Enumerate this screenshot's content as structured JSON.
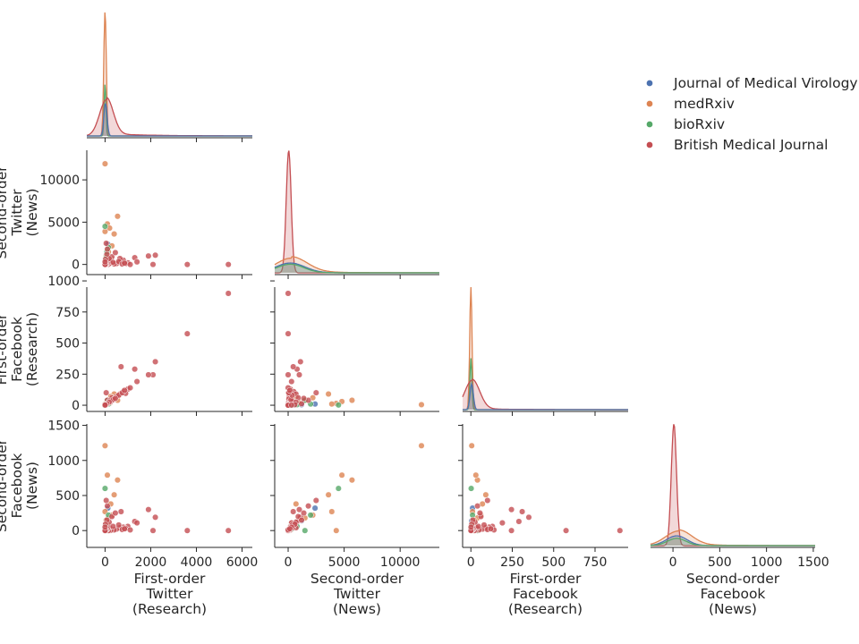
{
  "chart_data": {
    "type": "scatter",
    "subtype": "pairplot",
    "title": "",
    "hue_order": [
      "Journal of Medical Virology",
      "medRxiv",
      "bioRxiv",
      "British Medical Journal"
    ],
    "colors": {
      "Journal of Medical Virology": "#4c72b0",
      "medRxiv": "#dd8452",
      "bioRxiv": "#55a868",
      "British Medical Journal": "#c44e52"
    },
    "legend": {
      "placement": "top-right",
      "entries": [
        "Journal of Medical Virology",
        "medRxiv",
        "bioRxiv",
        "British Medical Journal"
      ]
    },
    "variables": [
      {
        "key": "fo_tw",
        "label_lines": [
          "First-order",
          "Twitter",
          "(Research)"
        ],
        "ticks": [
          0,
          2000,
          4000,
          6000
        ],
        "lim": [
          -800,
          6450
        ]
      },
      {
        "key": "so_tw",
        "label_lines": [
          "Second-order",
          "Twitter",
          "(News)"
        ],
        "ticks": [
          0,
          5000,
          10000
        ],
        "lim": [
          -1200,
          13500
        ]
      },
      {
        "key": "fo_fb",
        "label_lines": [
          "First-order",
          "Facebook",
          "(Research)"
        ],
        "ticks": [
          0,
          250,
          500,
          750,
          1000
        ],
        "lim": [
          -50,
          950
        ]
      },
      {
        "key": "so_fb",
        "label_lines": [
          "Second-order",
          "Facebook",
          "(News)"
        ],
        "ticks": [
          0,
          500,
          1000,
          1500
        ],
        "lim": [
          -240,
          1520
        ]
      }
    ],
    "grid": false,
    "kde": [
      {
        "var": "fo_tw",
        "peaks": [
          {
            "series": "medRxiv",
            "center": 0,
            "height": 1.0,
            "bw": 55,
            "tail": 0.0
          },
          {
            "series": "bioRxiv",
            "center": 0,
            "height": 0.42,
            "bw": 40,
            "tail": 0.0
          },
          {
            "series": "British Medical Journal",
            "center": 60,
            "height": 0.29,
            "bw": 300,
            "tail": 0.018
          },
          {
            "series": "Journal of Medical Virology",
            "center": 20,
            "height": 0.26,
            "bw": 70,
            "tail": 0.0
          }
        ]
      },
      {
        "var": "so_tw",
        "peaks": [
          {
            "series": "British Medical Journal",
            "center": 50,
            "height": 1.0,
            "bw": 220,
            "tail": 0.0
          },
          {
            "series": "medRxiv",
            "center": 300,
            "height": 0.12,
            "bw": 1400,
            "tail": 0.012
          },
          {
            "series": "Journal of Medical Virology",
            "center": 200,
            "height": 0.08,
            "bw": 1300,
            "tail": 0.0
          },
          {
            "series": "bioRxiv",
            "center": 200,
            "height": 0.07,
            "bw": 1200,
            "tail": 0.0
          }
        ]
      },
      {
        "var": "fo_fb",
        "peaks": [
          {
            "series": "medRxiv",
            "center": 0,
            "height": 1.0,
            "bw": 7,
            "tail": 0.0
          },
          {
            "series": "bioRxiv",
            "center": 0,
            "height": 0.42,
            "bw": 6,
            "tail": 0.0
          },
          {
            "series": "British Medical Journal",
            "center": 8,
            "height": 0.24,
            "bw": 45,
            "tail": 0.008
          },
          {
            "series": "Journal of Medical Virology",
            "center": 5,
            "height": 0.21,
            "bw": 10,
            "tail": 0.0
          }
        ]
      },
      {
        "var": "so_fb",
        "peaks": [
          {
            "series": "British Medical Journal",
            "center": 10,
            "height": 1.0,
            "bw": 28,
            "tail": 0.0
          },
          {
            "series": "medRxiv",
            "center": 60,
            "height": 0.12,
            "bw": 140,
            "tail": 0.01
          },
          {
            "series": "Journal of Medical Virology",
            "center": 40,
            "height": 0.08,
            "bw": 110,
            "tail": 0.0
          },
          {
            "series": "bioRxiv",
            "center": 40,
            "height": 0.06,
            "bw": 100,
            "tail": 0.0
          }
        ]
      }
    ],
    "points": [
      {
        "series": "Journal of Medical Virology",
        "fo_tw": 120,
        "so_tw": 2400,
        "fo_fb": 10,
        "so_fb": 320
      },
      {
        "series": "Journal of Medical Virology",
        "fo_tw": 60,
        "so_tw": 1200,
        "fo_fb": 5,
        "so_fb": 140
      },
      {
        "series": "Journal of Medical Virology",
        "fo_tw": 30,
        "so_tw": 600,
        "fo_fb": 3,
        "so_fb": 80
      },
      {
        "series": "Journal of Medical Virology",
        "fo_tw": 10,
        "so_tw": 200,
        "fo_fb": 1,
        "so_fb": 30
      },
      {
        "series": "medRxiv",
        "fo_tw": 0,
        "so_tw": 11900,
        "fo_fb": 5,
        "so_fb": 1210
      },
      {
        "series": "medRxiv",
        "fo_tw": 550,
        "so_tw": 5700,
        "fo_fb": 40,
        "so_fb": 720
      },
      {
        "series": "medRxiv",
        "fo_tw": 100,
        "so_tw": 4800,
        "fo_fb": 30,
        "so_fb": 790
      },
      {
        "series": "medRxiv",
        "fo_tw": 200,
        "so_tw": 4300,
        "fo_fb": 15,
        "so_fb": 0
      },
      {
        "series": "medRxiv",
        "fo_tw": 400,
        "so_tw": 3600,
        "fo_fb": 90,
        "so_fb": 510
      },
      {
        "series": "medRxiv",
        "fo_tw": 0,
        "so_tw": 3900,
        "fo_fb": 10,
        "so_fb": 270
      },
      {
        "series": "medRxiv",
        "fo_tw": 300,
        "so_tw": 2200,
        "fo_fb": 60,
        "so_fb": 220
      },
      {
        "series": "medRxiv",
        "fo_tw": 150,
        "so_tw": 1500,
        "fo_fb": 40,
        "so_fb": 180
      },
      {
        "series": "medRxiv",
        "fo_tw": 50,
        "so_tw": 1000,
        "fo_fb": 20,
        "so_fb": 150
      },
      {
        "series": "medRxiv",
        "fo_tw": 250,
        "so_tw": 700,
        "fo_fb": 70,
        "so_fb": 380
      },
      {
        "series": "medRxiv",
        "fo_tw": 80,
        "so_tw": 300,
        "fo_fb": 10,
        "so_fb": 100
      },
      {
        "series": "bioRxiv",
        "fo_tw": 0,
        "so_tw": 4500,
        "fo_fb": 2,
        "so_fb": 600
      },
      {
        "series": "bioRxiv",
        "fo_tw": 150,
        "so_tw": 2000,
        "fo_fb": 10,
        "so_fb": 220
      },
      {
        "series": "bioRxiv",
        "fo_tw": 50,
        "so_tw": 800,
        "fo_fb": 5,
        "so_fb": 60
      },
      {
        "series": "bioRxiv",
        "fo_tw": 80,
        "so_tw": 1500,
        "fo_fb": 40,
        "so_fb": 0
      },
      {
        "series": "bioRxiv",
        "fo_tw": 20,
        "so_tw": 300,
        "fo_fb": 3,
        "so_fb": 20
      },
      {
        "series": "British Medical Journal",
        "fo_tw": 5400,
        "so_tw": 0,
        "fo_fb": 900,
        "so_fb": 0
      },
      {
        "series": "British Medical Journal",
        "fo_tw": 3600,
        "so_tw": 0,
        "fo_fb": 575,
        "so_fb": 0
      },
      {
        "series": "British Medical Journal",
        "fo_tw": 2200,
        "so_tw": 1100,
        "fo_fb": 350,
        "so_fb": 190
      },
      {
        "series": "British Medical Journal",
        "fo_tw": 2100,
        "so_tw": 0,
        "fo_fb": 245,
        "so_fb": 0
      },
      {
        "series": "British Medical Journal",
        "fo_tw": 1900,
        "so_tw": 1000,
        "fo_fb": 245,
        "so_fb": 300
      },
      {
        "series": "British Medical Journal",
        "fo_tw": 1300,
        "so_tw": 800,
        "fo_fb": 290,
        "so_fb": 130
      },
      {
        "series": "British Medical Journal",
        "fo_tw": 700,
        "so_tw": 450,
        "fo_fb": 310,
        "so_fb": 270
      },
      {
        "series": "British Medical Journal",
        "fo_tw": 1400,
        "so_tw": 300,
        "fo_fb": 190,
        "so_fb": 110
      },
      {
        "series": "British Medical Journal",
        "fo_tw": 1000,
        "so_tw": 200,
        "fo_fb": 130,
        "so_fb": 60
      },
      {
        "series": "British Medical Journal",
        "fo_tw": 800,
        "so_tw": 500,
        "fo_fb": 110,
        "so_fb": 50
      },
      {
        "series": "British Medical Journal",
        "fo_tw": 900,
        "so_tw": 100,
        "fo_fb": 95,
        "so_fb": 30
      },
      {
        "series": "British Medical Journal",
        "fo_tw": 650,
        "so_tw": 700,
        "fo_fb": 90,
        "so_fb": 40
      },
      {
        "series": "British Medical Journal",
        "fo_tw": 50,
        "so_tw": 2500,
        "fo_fb": 100,
        "so_fb": 430
      },
      {
        "series": "British Medical Journal",
        "fo_tw": 100,
        "so_tw": 1800,
        "fo_fb": 40,
        "so_fb": 350
      },
      {
        "series": "British Medical Journal",
        "fo_tw": 300,
        "so_tw": 900,
        "fo_fb": 60,
        "so_fb": 200
      },
      {
        "series": "British Medical Journal",
        "fo_tw": 500,
        "so_tw": 100,
        "fo_fb": 70,
        "so_fb": 20
      },
      {
        "series": "British Medical Journal",
        "fo_tw": 400,
        "so_tw": 60,
        "fo_fb": 50,
        "so_fb": 10
      },
      {
        "series": "British Medical Journal",
        "fo_tw": 250,
        "so_tw": 150,
        "fo_fb": 30,
        "so_fb": 5
      },
      {
        "series": "British Medical Journal",
        "fo_tw": 200,
        "so_tw": 400,
        "fo_fb": 35,
        "so_fb": 40
      },
      {
        "series": "British Medical Journal",
        "fo_tw": 150,
        "so_tw": 30,
        "fo_fb": 20,
        "so_fb": 0
      },
      {
        "series": "British Medical Journal",
        "fo_tw": 100,
        "so_tw": 100,
        "fo_fb": 15,
        "so_fb": 20
      },
      {
        "series": "British Medical Journal",
        "fo_tw": 60,
        "so_tw": 50,
        "fo_fb": 10,
        "so_fb": 10
      },
      {
        "series": "British Medical Journal",
        "fo_tw": 30,
        "so_tw": 20,
        "fo_fb": 5,
        "so_fb": 5
      },
      {
        "series": "British Medical Journal",
        "fo_tw": 10,
        "so_tw": 10,
        "fo_fb": 2,
        "so_fb": 2
      },
      {
        "series": "British Medical Journal",
        "fo_tw": 0,
        "so_tw": 0,
        "fo_fb": 0,
        "so_fb": 0
      },
      {
        "series": "British Medical Journal",
        "fo_tw": 350,
        "so_tw": 250,
        "fo_fb": 45,
        "so_fb": 60
      },
      {
        "series": "British Medical Journal",
        "fo_tw": 600,
        "so_tw": 350,
        "fo_fb": 80,
        "so_fb": 80
      },
      {
        "series": "British Medical Journal",
        "fo_tw": 750,
        "so_tw": 50,
        "fo_fb": 100,
        "so_fb": 15
      },
      {
        "series": "British Medical Journal",
        "fo_tw": 450,
        "so_tw": 1400,
        "fo_fb": 55,
        "so_fb": 250
      },
      {
        "series": "British Medical Journal",
        "fo_tw": 180,
        "so_tw": 700,
        "fo_fb": 25,
        "so_fb": 120
      },
      {
        "series": "British Medical Journal",
        "fo_tw": 80,
        "so_tw": 1200,
        "fo_fb": 12,
        "so_fb": 150
      },
      {
        "series": "British Medical Journal",
        "fo_tw": 20,
        "so_tw": 600,
        "fo_fb": 5,
        "so_fb": 90
      },
      {
        "series": "British Medical Journal",
        "fo_tw": 0,
        "so_tw": 300,
        "fo_fb": 1,
        "so_fb": 50
      },
      {
        "series": "British Medical Journal",
        "fo_tw": 1100,
        "so_tw": 0,
        "fo_fb": 140,
        "so_fb": 10
      },
      {
        "series": "British Medical Journal",
        "fo_tw": 850,
        "so_tw": 150,
        "fo_fb": 120,
        "so_fb": 25
      }
    ]
  }
}
